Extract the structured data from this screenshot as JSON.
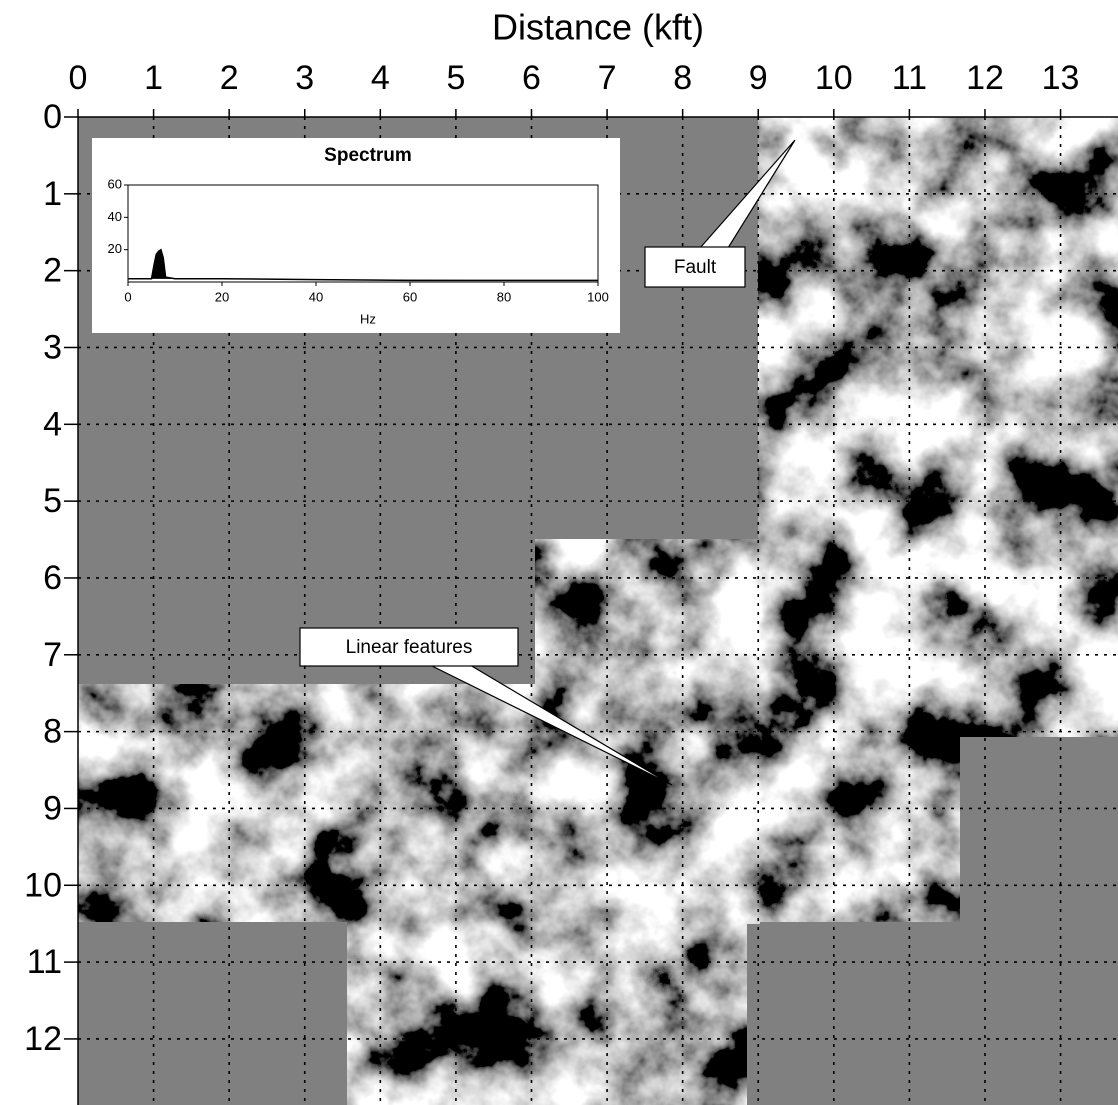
{
  "chart_data": [
    {
      "type": "image",
      "x_label": "Distance (kft)",
      "xlim": [
        0,
        13.76
      ],
      "ylim": [
        0,
        12.86
      ],
      "xticks": [
        0,
        1,
        2,
        3,
        4,
        5,
        6,
        7,
        8,
        9,
        10,
        11,
        12,
        13
      ],
      "yticks": [
        0,
        1,
        2,
        3,
        4,
        5,
        6,
        7,
        8,
        9,
        10,
        11,
        12
      ],
      "grid": true,
      "annotations": [
        "Fault",
        "Linear features"
      ]
    },
    {
      "type": "line",
      "title": "Spectrum",
      "x_label": "Hz",
      "x": [
        0,
        5,
        5.5,
        6,
        6.5,
        7,
        7.5,
        8,
        10,
        20,
        40,
        60,
        80,
        100
      ],
      "series": [
        {
          "color": "#000000",
          "values": [
            2,
            2,
            10,
            17,
            19,
            20,
            15,
            3,
            2,
            2,
            1.5,
            1,
            1,
            1
          ]
        }
      ],
      "xlim": [
        0,
        100
      ],
      "ylim": [
        0,
        60
      ],
      "xticks": [
        0,
        20,
        40,
        60,
        80,
        100
      ],
      "yticks": [
        20,
        40,
        60
      ]
    }
  ]
}
